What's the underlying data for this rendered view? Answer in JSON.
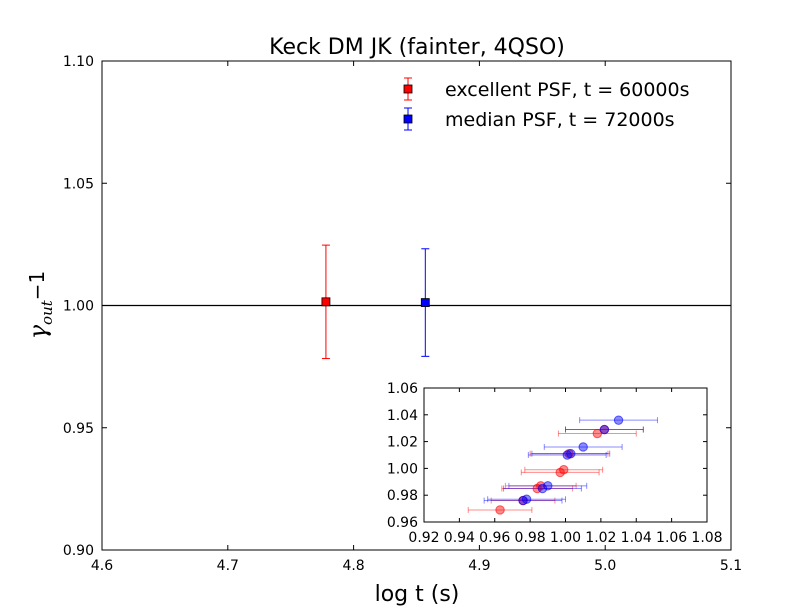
{
  "chart_data": [
    {
      "type": "scatter",
      "title": "Keck DM JK (fainter, 4QSO)",
      "xlabel": "log t (s)",
      "ylabel_main": "γ",
      "ylabel_sub": "out",
      "ylabel_suffix": "−1",
      "xlim": [
        4.6,
        5.1
      ],
      "ylim": [
        0.9,
        1.1
      ],
      "xticks": [
        4.6,
        4.7,
        4.8,
        4.9,
        5.0,
        5.1
      ],
      "xtick_labels": [
        "4.6",
        "4.7",
        "4.8",
        "4.9",
        "5.0",
        "5.1"
      ],
      "yticks": [
        0.9,
        0.95,
        1.0,
        1.05,
        1.1
      ],
      "ytick_labels": [
        "0.90",
        "0.95",
        "1.00",
        "1.05",
        "1.10"
      ],
      "reference_line_y": 1.0,
      "legend_position": "upper-right",
      "series": [
        {
          "name": "excellent PSF, t = 60000s",
          "color": "#ff0000",
          "x": [
            4.778
          ],
          "y": [
            1.0015
          ],
          "yerr": [
            0.0232
          ]
        },
        {
          "name": "median PSF, t = 72000s",
          "color": "#0000ff",
          "x": [
            4.857
          ],
          "y": [
            1.0012
          ],
          "yerr": [
            0.022
          ]
        }
      ]
    },
    {
      "type": "scatter",
      "xlim": [
        0.92,
        1.08
      ],
      "ylim": [
        0.96,
        1.06
      ],
      "xticks": [
        0.92,
        0.94,
        0.96,
        0.98,
        1.0,
        1.02,
        1.04,
        1.06,
        1.08
      ],
      "xtick_labels": [
        "0.92",
        "0.94",
        "0.96",
        "0.98",
        "1.00",
        "1.02",
        "1.04",
        "1.06",
        "1.08"
      ],
      "yticks": [
        0.96,
        0.98,
        1.0,
        1.02,
        1.04,
        1.06
      ],
      "ytick_labels": [
        "0.96",
        "0.98",
        "1.00",
        "1.02",
        "1.04",
        "1.06"
      ],
      "series": [
        {
          "color": "#ff0000",
          "x": [
            0.963,
            0.976,
            0.984,
            0.986,
            0.997,
            0.999,
            1.002,
            1.018,
            1.022
          ],
          "y": [
            0.969,
            0.976,
            0.985,
            0.987,
            0.997,
            0.999,
            1.011,
            1.026,
            1.029
          ],
          "xerr": [
            0.018,
            0.018,
            0.02,
            0.02,
            0.022,
            0.022,
            0.022,
            0.022,
            0.022
          ]
        },
        {
          "color": "#0000ff",
          "x": [
            0.976,
            0.978,
            0.987,
            0.99,
            1.001,
            1.003,
            1.01,
            1.022,
            1.03
          ],
          "y": [
            0.976,
            0.977,
            0.985,
            0.987,
            1.01,
            1.011,
            1.016,
            1.029,
            1.036
          ],
          "xerr": [
            0.022,
            0.022,
            0.022,
            0.022,
            0.022,
            0.022,
            0.022,
            0.022,
            0.022
          ]
        }
      ]
    }
  ]
}
